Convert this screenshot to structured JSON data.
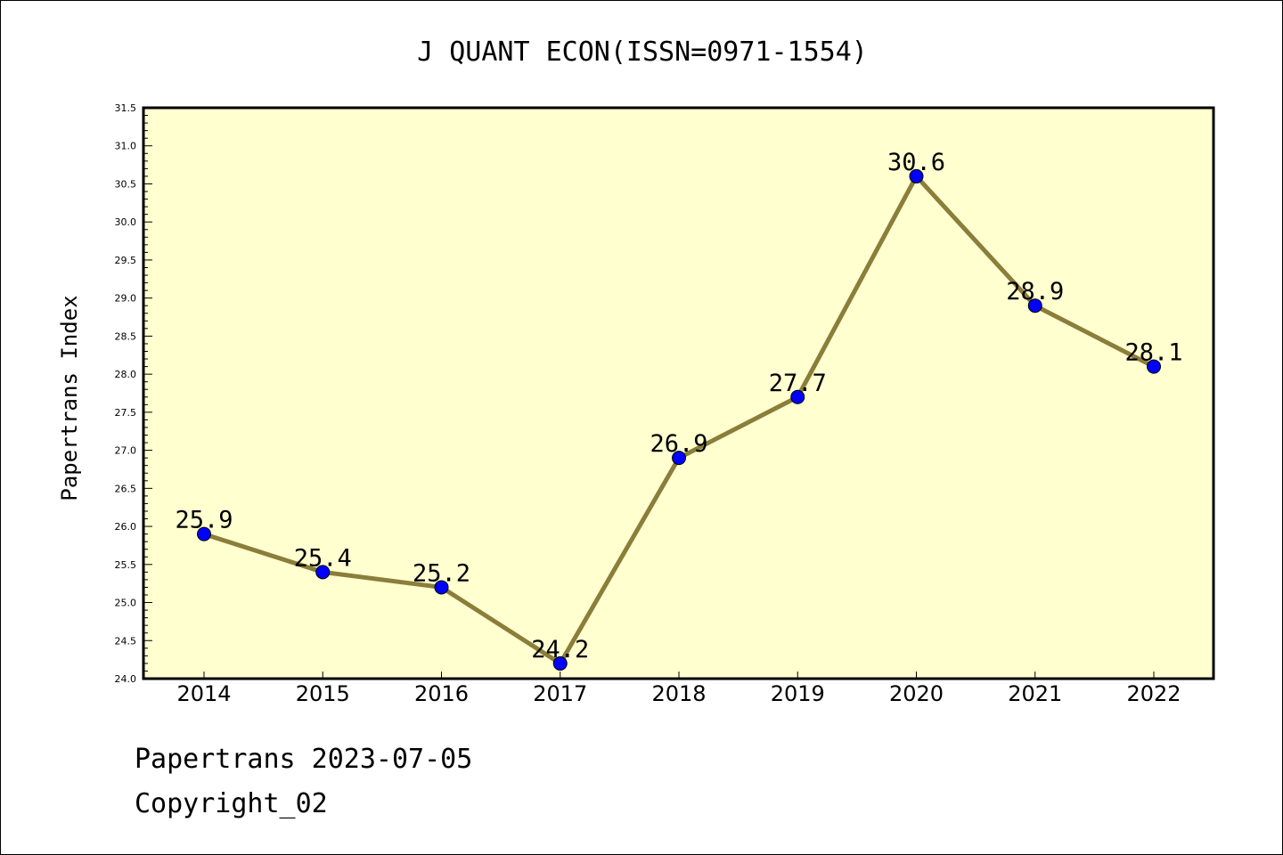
{
  "chart_data": {
    "type": "line",
    "title": "J QUANT ECON(ISSN=0971-1554)",
    "xlabel": "",
    "ylabel": "Papertrans Index",
    "categories": [
      "2014",
      "2015",
      "2016",
      "2017",
      "2018",
      "2019",
      "2020",
      "2021",
      "2022"
    ],
    "values": [
      25.9,
      25.4,
      25.2,
      24.2,
      26.9,
      27.7,
      30.6,
      28.9,
      28.1
    ],
    "data_labels": [
      "25.9",
      "25.4",
      "25.2",
      "24.2",
      "26.9",
      "27.7",
      "30.6",
      "28.9",
      "28.1"
    ],
    "ylim": [
      24.0,
      31.5
    ],
    "yticks": [
      "24.0",
      "24.5",
      "25.0",
      "25.5",
      "26.0",
      "26.5",
      "27.0",
      "27.5",
      "28.0",
      "28.5",
      "29.0",
      "29.5",
      "30.0",
      "30.5",
      "31.0",
      "31.5"
    ],
    "grid": false,
    "legend": "none",
    "colors": {
      "plot_background": "#ffffd0",
      "line": "#8b7d3a",
      "marker": "#0000ff"
    }
  },
  "footer": {
    "date_text": "Papertrans 2023-07-05",
    "copyright_text": "Copyright_02"
  }
}
